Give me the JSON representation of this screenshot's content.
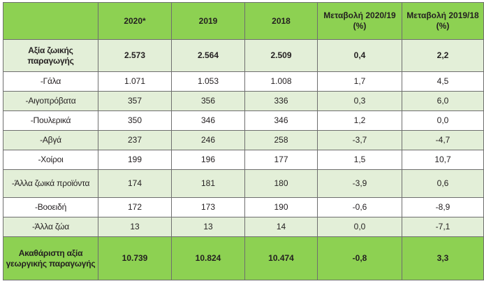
{
  "table": {
    "headers": [
      "",
      "2020*",
      "2019",
      "2018",
      "Μεταβολή 2020/19 (%)",
      "Μεταβολή 2019/18 (%)"
    ],
    "rows": [
      {
        "label": "Αξία ζωικής παραγωγής",
        "v2020": "2.573",
        "v2019": "2.564",
        "v2018": "2.509",
        "ch2019": "0,4",
        "ch2018": "2,2"
      },
      {
        "label": "-Γάλα",
        "v2020": "1.071",
        "v2019": "1.053",
        "v2018": "1.008",
        "ch2019": "1,7",
        "ch2018": "4,5"
      },
      {
        "label": "-Αιγοπρόβατα",
        "v2020": "357",
        "v2019": "356",
        "v2018": "336",
        "ch2019": "0,3",
        "ch2018": "6,0"
      },
      {
        "label": "-Πουλερικά",
        "v2020": "350",
        "v2019": "346",
        "v2018": "346",
        "ch2019": "1,2",
        "ch2018": "0,0"
      },
      {
        "label": "-Αβγά",
        "v2020": "237",
        "v2019": "246",
        "v2018": "258",
        "ch2019": "-3,7",
        "ch2018": "-4,7"
      },
      {
        "label": "-Χοίροι",
        "v2020": "199",
        "v2019": "196",
        "v2018": "177",
        "ch2019": "1,5",
        "ch2018": "10,7"
      },
      {
        "label": "-Άλλα ζωικά προϊόντα",
        "v2020": "174",
        "v2019": "181",
        "v2018": "180",
        "ch2019": "-3,9",
        "ch2018": "0,6"
      },
      {
        "label": "-Βοοειδή",
        "v2020": "172",
        "v2019": "173",
        "v2018": "190",
        "ch2019": "-0,6",
        "ch2018": "-8,9"
      },
      {
        "label": "-Άλλα ζώα",
        "v2020": "13",
        "v2019": "13",
        "v2018": "14",
        "ch2019": "0,0",
        "ch2018": "-7,1"
      },
      {
        "label": "Ακαθάριστη αξία γεωργικής παραγωγής",
        "v2020": "10.739",
        "v2019": "10.824",
        "v2018": "10.474",
        "ch2019": "-0,8",
        "ch2018": "3,3"
      }
    ]
  }
}
